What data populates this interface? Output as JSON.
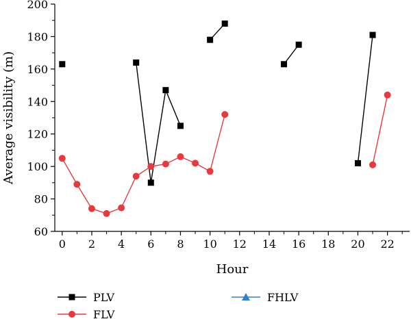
{
  "chart_data": {
    "type": "line",
    "xlabel": "Hour",
    "ylabel": "Average visibility (m)",
    "xlim": [
      -0.5,
      23.5
    ],
    "ylim": [
      60,
      200
    ],
    "xticks": [
      0,
      2,
      4,
      6,
      8,
      10,
      12,
      14,
      16,
      18,
      20,
      22
    ],
    "xminor": [
      1,
      3,
      5,
      7,
      9,
      11,
      13,
      15,
      17,
      19,
      21,
      23
    ],
    "yticks": [
      60,
      80,
      100,
      120,
      140,
      160,
      180,
      200
    ],
    "grid": false,
    "legend_position": "bottom",
    "series": [
      {
        "name": "PLV",
        "color": "#000000",
        "marker": "square",
        "segments": [
          [
            [
              0,
              163
            ]
          ],
          [
            [
              5,
              164
            ],
            [
              6,
              90
            ],
            [
              7,
              147
            ],
            [
              8,
              125
            ]
          ],
          [
            [
              10,
              178
            ],
            [
              11,
              188
            ]
          ],
          [
            [
              15,
              163
            ],
            [
              16,
              175
            ]
          ],
          [
            [
              20,
              102
            ],
            [
              21,
              181
            ]
          ]
        ]
      },
      {
        "name": "FLV",
        "color": "#e8393f",
        "marker": "circle",
        "segments": [
          [
            [
              0,
              105
            ],
            [
              1,
              89
            ],
            [
              2,
              74
            ],
            [
              3,
              71
            ],
            [
              4,
              74.5
            ],
            [
              5,
              94
            ],
            [
              6,
              100
            ],
            [
              7,
              101.5
            ],
            [
              8,
              106
            ],
            [
              9,
              102
            ],
            [
              10,
              97
            ],
            [
              11,
              132
            ]
          ],
          [
            [
              21,
              101
            ],
            [
              22,
              144
            ]
          ]
        ]
      },
      {
        "name": "FHLV",
        "color": "#2f7fd6",
        "marker": "triangle",
        "segments": []
      }
    ]
  }
}
